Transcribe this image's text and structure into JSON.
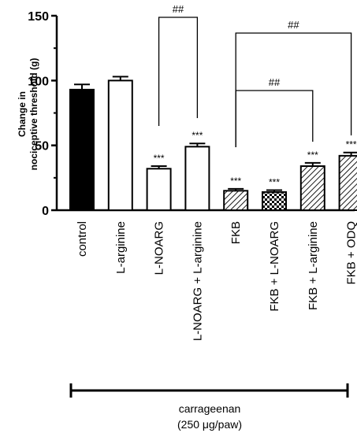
{
  "chart_data": {
    "type": "bar",
    "ylabel_line1": "Change in",
    "ylabel_line2": "nociceptive threshold (g)",
    "ylim": [
      0,
      150
    ],
    "yticks": [
      0,
      50,
      100,
      150
    ],
    "categories": [
      "control",
      "L-arginine",
      "L-NOARG",
      "L-NOARG + L-arginine",
      "FKB",
      "FKB + L-NOARG",
      "FKB + L-arginine",
      "FKB + ODQ"
    ],
    "values": [
      93,
      100,
      32,
      49,
      15,
      14,
      34,
      42
    ],
    "errors": [
      4,
      3,
      2,
      2.5,
      1.5,
      1.5,
      2.5,
      2.5
    ],
    "fills": [
      "solid",
      "open",
      "open",
      "open",
      "hatched",
      "checkered",
      "hatched",
      "hatched"
    ],
    "significance": [
      "",
      "",
      "***",
      "***",
      "***",
      "***",
      "***",
      "***"
    ],
    "brackets": [
      {
        "from": 2,
        "to": 3,
        "label": "##"
      },
      {
        "from": 4,
        "to": 7,
        "label": "##"
      },
      {
        "from": 4,
        "to": 6,
        "label": "##"
      }
    ],
    "treatment_line1": "carrageenan",
    "treatment_line2": "(250 μg/paw)"
  }
}
